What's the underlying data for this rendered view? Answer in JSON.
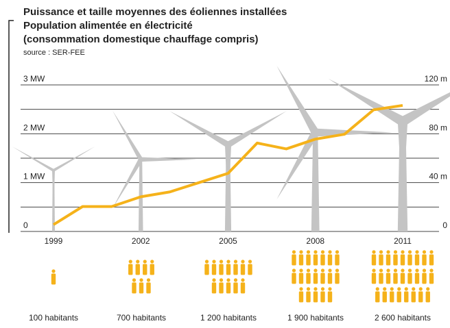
{
  "chart_data": {
    "type": "line",
    "title": "Puissance et taille moyennes des éoliennes installées",
    "subtitle": "Population alimentée en électricité",
    "subtitle2": "(consommation domestique chauffage compris)",
    "source": "source : SER-FEE",
    "x": [
      1999,
      2000,
      2001,
      2002,
      2003,
      2004,
      2005,
      2006,
      2007,
      2008,
      2009,
      2010,
      2011
    ],
    "values": [
      0.14,
      0.51,
      0.51,
      0.71,
      0.81,
      1.0,
      1.19,
      1.81,
      1.69,
      1.89,
      1.99,
      2.49,
      2.58
    ],
    "color": "#f5b21a",
    "xlim": [
      1999,
      2011
    ],
    "xticks": [
      1999,
      2002,
      2005,
      2008,
      2011
    ],
    "ylim": [
      0,
      3
    ],
    "yticks": [
      0,
      {
        "value": 1,
        "label": "1 MW"
      },
      {
        "value": 2,
        "label": "2 MW"
      },
      {
        "value": 3,
        "label": "3 MW"
      }
    ],
    "minor_yticks": [
      0.5,
      1.5,
      2.5
    ],
    "y2lim": [
      0,
      120
    ],
    "y2ticks": [
      0,
      {
        "value": 40,
        "label": "40 m"
      },
      {
        "value": 80,
        "label": "80 m"
      },
      {
        "value": 120,
        "label": "120 m"
      }
    ],
    "turbines": {
      "x": [
        1999,
        2002,
        2005,
        2008,
        2011
      ],
      "values": [
        50,
        59,
        71,
        81,
        90
      ],
      "axis": "y2",
      "color": "#c4c4c4"
    },
    "population": {
      "values": [
        100,
        700,
        1200,
        1900,
        2600
      ],
      "value_labels": [
        "100 habitants",
        "700 habitants",
        "1 200 habitants",
        "1 900 habitants",
        "2 600 habitants"
      ],
      "icons": [
        1,
        7,
        12,
        19,
        26
      ]
    }
  }
}
